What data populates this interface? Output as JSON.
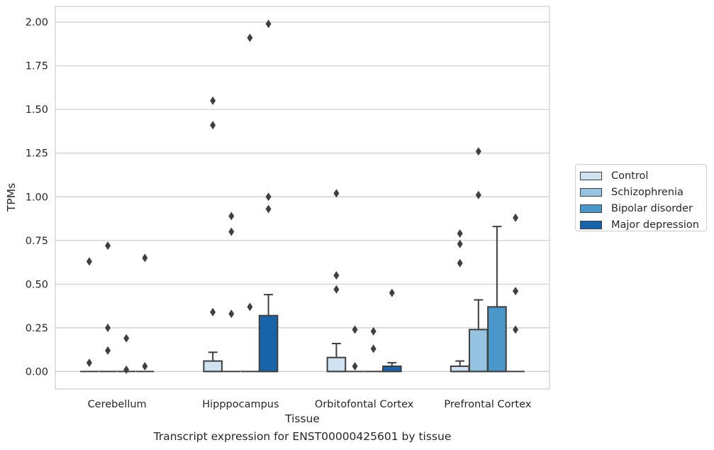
{
  "chart_data": {
    "type": "box",
    "xlabel": "Tissue",
    "ylabel": "TPMs",
    "caption": "Transcript expression for ENST00000425601 by tissue",
    "ylim": [
      -0.1,
      2.09
    ],
    "yticks": [
      "0.00",
      "0.25",
      "0.50",
      "0.75",
      "1.00",
      "1.25",
      "1.50",
      "1.75",
      "2.00"
    ],
    "grid": "horizontal",
    "legend_position": "right",
    "categories": [
      "Cerebellum",
      "Hipppocampus",
      "Orbitofontal Cortex",
      "Prefrontal Cortex"
    ],
    "series": [
      {
        "name": "Control",
        "color": "#d0e1f2",
        "boxes": [
          {
            "q1": 0,
            "median": 0,
            "q3": 0,
            "whisker_low": 0,
            "whisker_high": 0,
            "outliers": [
              0.63,
              0.05
            ]
          },
          {
            "q1": 0,
            "median": 0,
            "q3": 0.06,
            "whisker_low": 0,
            "whisker_high": 0.11,
            "outliers": [
              1.55,
              1.41,
              0.34
            ]
          },
          {
            "q1": 0,
            "median": 0,
            "q3": 0.08,
            "whisker_low": 0,
            "whisker_high": 0.16,
            "outliers": [
              1.02,
              0.55,
              0.47
            ]
          },
          {
            "q1": 0,
            "median": 0,
            "q3": 0.03,
            "whisker_low": 0,
            "whisker_high": 0.06,
            "outliers": [
              0.79,
              0.73,
              0.62
            ]
          }
        ]
      },
      {
        "name": "Schizophrenia",
        "color": "#94c4df",
        "boxes": [
          {
            "q1": 0,
            "median": 0,
            "q3": 0,
            "whisker_low": 0,
            "whisker_high": 0,
            "outliers": [
              0.72,
              0.25,
              0.12
            ]
          },
          {
            "q1": 0,
            "median": 0,
            "q3": 0,
            "whisker_low": 0,
            "whisker_high": 0,
            "outliers": [
              0.89,
              0.8,
              0.33
            ]
          },
          {
            "q1": 0,
            "median": 0,
            "q3": 0,
            "whisker_low": 0,
            "whisker_high": 0,
            "outliers": [
              0.24,
              0.03
            ]
          },
          {
            "q1": 0,
            "median": 0,
            "q3": 0.24,
            "whisker_low": 0,
            "whisker_high": 0.41,
            "outliers": [
              1.26,
              1.01
            ]
          }
        ]
      },
      {
        "name": "Bipolar disorder",
        "color": "#4a98c9",
        "boxes": [
          {
            "q1": 0,
            "median": 0,
            "q3": 0,
            "whisker_low": 0,
            "whisker_high": 0,
            "outliers": [
              0.19,
              0.01
            ]
          },
          {
            "q1": 0,
            "median": 0,
            "q3": 0,
            "whisker_low": 0,
            "whisker_high": 0,
            "outliers": [
              1.91,
              0.37
            ]
          },
          {
            "q1": 0,
            "median": 0,
            "q3": 0,
            "whisker_low": 0,
            "whisker_high": 0,
            "outliers": [
              0.23,
              0.13
            ]
          },
          {
            "q1": 0,
            "median": 0,
            "q3": 0.37,
            "whisker_low": 0,
            "whisker_high": 0.83,
            "outliers": []
          }
        ]
      },
      {
        "name": "Major depression",
        "color": "#1764ab",
        "boxes": [
          {
            "q1": 0,
            "median": 0,
            "q3": 0,
            "whisker_low": 0,
            "whisker_high": 0,
            "outliers": [
              0.65,
              0.03
            ]
          },
          {
            "q1": 0,
            "median": 0,
            "q3": 0.32,
            "whisker_low": 0,
            "whisker_high": 0.44,
            "outliers": [
              1.99,
              1.0,
              0.93
            ]
          },
          {
            "q1": 0,
            "median": 0,
            "q3": 0.03,
            "whisker_low": 0,
            "whisker_high": 0.05,
            "outliers": [
              0.45
            ]
          },
          {
            "q1": 0,
            "median": 0,
            "q3": 0,
            "whisker_low": 0,
            "whisker_high": 0,
            "outliers": [
              0.88,
              0.46,
              0.24
            ]
          }
        ]
      }
    ]
  }
}
